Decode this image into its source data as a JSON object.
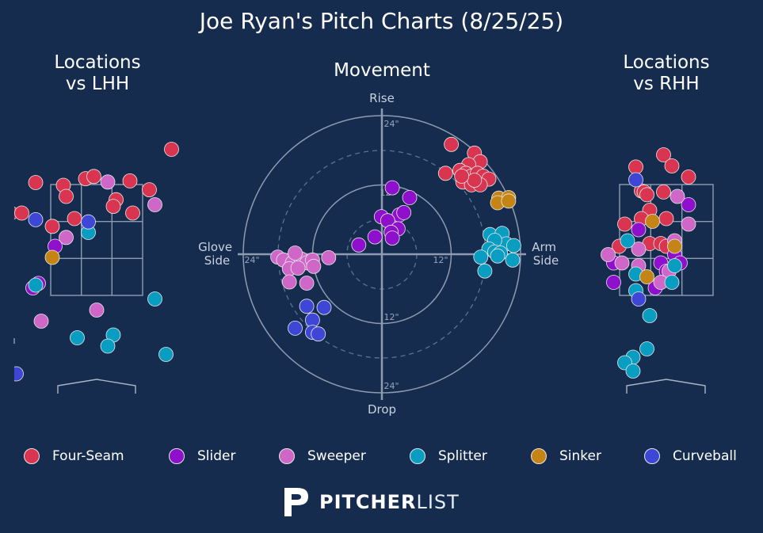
{
  "title": "Joe Ryan's Pitch Charts (8/25/25)",
  "panels": {
    "lhh_title": "Locations\nvs LHH",
    "movement_title": "Movement",
    "rhh_title": "Locations\nvs RHH"
  },
  "movement_labels": {
    "top": "Rise",
    "bottom": "Drop",
    "left": "Glove\nSide",
    "right": "Arm\nSide",
    "ring_inner": "12\"",
    "ring_outer": "24\""
  },
  "colors": {
    "background": "#152c4f",
    "Four-Seam": "#d93550",
    "Slider": "#8e0fcc",
    "Sweeper": "#cf67c8",
    "Splitter": "#0a9dc2",
    "Sinker": "#c58416",
    "Curveball": "#3e46d6"
  },
  "legend": [
    "Four-Seam",
    "Slider",
    "Sweeper",
    "Splitter",
    "Sinker",
    "Curveball"
  ],
  "brand": {
    "logo": "pitcherlist-logo",
    "bold": "PITCHER",
    "light": "LIST"
  },
  "chart_data": [
    {
      "type": "scatter",
      "title": "Locations\nvs LHH",
      "x_unit": "ft from plate center",
      "y_unit": "ft above ground",
      "points": [
        {
          "pitch": "Four-Seam",
          "x": 1.35,
          "y": 4.15
        },
        {
          "pitch": "Four-Seam",
          "x": -1.1,
          "y": 3.55
        },
        {
          "pitch": "Four-Seam",
          "x": -0.6,
          "y": 3.5
        },
        {
          "pitch": "Four-Seam",
          "x": -0.2,
          "y": 3.62
        },
        {
          "pitch": "Four-Seam",
          "x": -0.05,
          "y": 3.66
        },
        {
          "pitch": "Four-Seam",
          "x": 0.6,
          "y": 3.58
        },
        {
          "pitch": "Four-Seam",
          "x": 0.95,
          "y": 3.42
        },
        {
          "pitch": "Four-Seam",
          "x": -0.55,
          "y": 3.3
        },
        {
          "pitch": "Four-Seam",
          "x": 0.35,
          "y": 3.24
        },
        {
          "pitch": "Four-Seam",
          "x": 0.3,
          "y": 3.12
        },
        {
          "pitch": "Four-Seam",
          "x": -1.55,
          "y": 3.0
        },
        {
          "pitch": "Four-Seam",
          "x": -1.35,
          "y": 3.0
        },
        {
          "pitch": "Four-Seam",
          "x": -0.4,
          "y": 2.9
        },
        {
          "pitch": "Four-Seam",
          "x": 0.65,
          "y": 3.0
        },
        {
          "pitch": "Four-Seam",
          "x": -0.8,
          "y": 2.76
        },
        {
          "pitch": "Slider",
          "x": -1.7,
          "y": 1.65
        },
        {
          "pitch": "Slider",
          "x": -1.15,
          "y": 1.65
        },
        {
          "pitch": "Slider",
          "x": -1.05,
          "y": 1.73
        },
        {
          "pitch": "Slider",
          "x": -0.75,
          "y": 2.4
        },
        {
          "pitch": "Sweeper",
          "x": 0.2,
          "y": 3.56
        },
        {
          "pitch": "Sweeper",
          "x": 1.05,
          "y": 3.15
        },
        {
          "pitch": "Sweeper",
          "x": -0.55,
          "y": 2.56
        },
        {
          "pitch": "Sweeper",
          "x": 0.0,
          "y": 1.25
        },
        {
          "pitch": "Sweeper",
          "x": -1.0,
          "y": 1.05
        },
        {
          "pitch": "Splitter",
          "x": -0.15,
          "y": 2.65
        },
        {
          "pitch": "Splitter",
          "x": 1.05,
          "y": 1.45
        },
        {
          "pitch": "Splitter",
          "x": -1.1,
          "y": 1.7
        },
        {
          "pitch": "Splitter",
          "x": 0.3,
          "y": 0.8
        },
        {
          "pitch": "Splitter",
          "x": -0.35,
          "y": 0.75
        },
        {
          "pitch": "Splitter",
          "x": 0.2,
          "y": 0.6
        },
        {
          "pitch": "Splitter",
          "x": 1.25,
          "y": 0.45
        },
        {
          "pitch": "Sinker",
          "x": -0.8,
          "y": 2.2
        },
        {
          "pitch": "Curveball",
          "x": -1.1,
          "y": 2.88
        },
        {
          "pitch": "Curveball",
          "x": -0.15,
          "y": 2.84
        },
        {
          "pitch": "Curveball",
          "x": -1.45,
          "y": 0.1
        }
      ]
    },
    {
      "type": "scatter",
      "title": "Movement",
      "polar": true,
      "x_unit": "in (horizontal break)",
      "y_unit": "in (induced vertical break)",
      "rings": [
        12,
        24
      ],
      "points": [
        {
          "pitch": "Four-Seam",
          "x": 12,
          "y": 19
        },
        {
          "pitch": "Four-Seam",
          "x": 16,
          "y": 17.5
        },
        {
          "pitch": "Four-Seam",
          "x": 17,
          "y": 16
        },
        {
          "pitch": "Four-Seam",
          "x": 15,
          "y": 15.5
        },
        {
          "pitch": "Four-Seam",
          "x": 13.5,
          "y": 14.5
        },
        {
          "pitch": "Four-Seam",
          "x": 14.5,
          "y": 14
        },
        {
          "pitch": "Four-Seam",
          "x": 15.5,
          "y": 13.5
        },
        {
          "pitch": "Four-Seam",
          "x": 16.5,
          "y": 14
        },
        {
          "pitch": "Four-Seam",
          "x": 17.5,
          "y": 13.5
        },
        {
          "pitch": "Four-Seam",
          "x": 18.5,
          "y": 13
        },
        {
          "pitch": "Four-Seam",
          "x": 11,
          "y": 14
        },
        {
          "pitch": "Four-Seam",
          "x": 14,
          "y": 12.5
        },
        {
          "pitch": "Four-Seam",
          "x": 15.5,
          "y": 12
        },
        {
          "pitch": "Four-Seam",
          "x": 17,
          "y": 12
        },
        {
          "pitch": "Four-Seam",
          "x": 16,
          "y": 12.8
        },
        {
          "pitch": "Four-Seam",
          "x": 13.8,
          "y": 13.5
        },
        {
          "pitch": "Slider",
          "x": 1.8,
          "y": 11.5
        },
        {
          "pitch": "Slider",
          "x": 4.8,
          "y": 9.8
        },
        {
          "pitch": "Slider",
          "x": 3,
          "y": 6.8
        },
        {
          "pitch": "Slider",
          "x": 3.8,
          "y": 7.2
        },
        {
          "pitch": "Slider",
          "x": -0.1,
          "y": 6.5
        },
        {
          "pitch": "Slider",
          "x": 1,
          "y": 5.8
        },
        {
          "pitch": "Slider",
          "x": 2.8,
          "y": 4.4
        },
        {
          "pitch": "Slider",
          "x": 1.6,
          "y": 3.8
        },
        {
          "pitch": "Slider",
          "x": -1.2,
          "y": 3
        },
        {
          "pitch": "Slider",
          "x": 1.8,
          "y": 2.8
        },
        {
          "pitch": "Slider",
          "x": -4,
          "y": 1.6
        },
        {
          "pitch": "Sweeper",
          "x": -18,
          "y": -0.5
        },
        {
          "pitch": "Sweeper",
          "x": -17,
          "y": -1
        },
        {
          "pitch": "Sweeper",
          "x": -15.5,
          "y": -1.5
        },
        {
          "pitch": "Sweeper",
          "x": -14,
          "y": -0.8
        },
        {
          "pitch": "Sweeper",
          "x": -13,
          "y": -1.5
        },
        {
          "pitch": "Sweeper",
          "x": -15,
          "y": 0.2
        },
        {
          "pitch": "Sweeper",
          "x": -12,
          "y": -1
        },
        {
          "pitch": "Sweeper",
          "x": -11.8,
          "y": -2.1
        },
        {
          "pitch": "Sweeper",
          "x": -16,
          "y": -2.5
        },
        {
          "pitch": "Sweeper",
          "x": -14.5,
          "y": -2.4
        },
        {
          "pitch": "Sweeper",
          "x": -9.2,
          "y": -0.6
        },
        {
          "pitch": "Sweeper",
          "x": -16,
          "y": -4.8
        },
        {
          "pitch": "Sweeper",
          "x": -13,
          "y": -5
        },
        {
          "pitch": "Splitter",
          "x": 18.7,
          "y": 3.4
        },
        {
          "pitch": "Splitter",
          "x": 20.8,
          "y": 3.6
        },
        {
          "pitch": "Splitter",
          "x": 21.5,
          "y": 1.8
        },
        {
          "pitch": "Splitter",
          "x": 19.5,
          "y": 2.4
        },
        {
          "pitch": "Splitter",
          "x": 18.5,
          "y": 0.9
        },
        {
          "pitch": "Splitter",
          "x": 19.5,
          "y": 0.4
        },
        {
          "pitch": "Splitter",
          "x": 20.5,
          "y": 0.2
        },
        {
          "pitch": "Splitter",
          "x": 20,
          "y": -0.3
        },
        {
          "pitch": "Splitter",
          "x": 17.1,
          "y": -0.5
        },
        {
          "pitch": "Splitter",
          "x": 22.6,
          "y": -1
        },
        {
          "pitch": "Splitter",
          "x": 22.8,
          "y": 1.5
        },
        {
          "pitch": "Splitter",
          "x": 17.8,
          "y": -2.9
        },
        {
          "pitch": "Sinker",
          "x": 20.2,
          "y": 9.7
        },
        {
          "pitch": "Sinker",
          "x": 21.9,
          "y": 9.8
        },
        {
          "pitch": "Sinker",
          "x": 20,
          "y": 8.9
        },
        {
          "pitch": "Sinker",
          "x": 21.9,
          "y": 9.2
        },
        {
          "pitch": "Curveball",
          "x": -13,
          "y": -9
        },
        {
          "pitch": "Curveball",
          "x": -10,
          "y": -9.2
        },
        {
          "pitch": "Curveball",
          "x": -12,
          "y": -11.4
        },
        {
          "pitch": "Curveball",
          "x": -15,
          "y": -12.8
        },
        {
          "pitch": "Curveball",
          "x": -12,
          "y": -13.5
        },
        {
          "pitch": "Curveball",
          "x": -11,
          "y": -13.8
        }
      ]
    },
    {
      "type": "scatter",
      "title": "Locations\nvs RHH",
      "x_unit": "ft from plate center",
      "y_unit": "ft above ground",
      "points": [
        {
          "pitch": "Four-Seam",
          "x": -0.05,
          "y": 4.05
        },
        {
          "pitch": "Four-Seam",
          "x": 0.1,
          "y": 3.85
        },
        {
          "pitch": "Four-Seam",
          "x": -0.55,
          "y": 3.83
        },
        {
          "pitch": "Four-Seam",
          "x": 0.4,
          "y": 3.65
        },
        {
          "pitch": "Four-Seam",
          "x": -0.45,
          "y": 3.4
        },
        {
          "pitch": "Four-Seam",
          "x": -0.4,
          "y": 3.38
        },
        {
          "pitch": "Four-Seam",
          "x": -0.35,
          "y": 3.33
        },
        {
          "pitch": "Four-Seam",
          "x": -0.05,
          "y": 3.38
        },
        {
          "pitch": "Four-Seam",
          "x": -0.3,
          "y": 3.05
        },
        {
          "pitch": "Four-Seam",
          "x": -0.45,
          "y": 2.9
        },
        {
          "pitch": "Four-Seam",
          "x": 0.0,
          "y": 2.9
        },
        {
          "pitch": "Four-Seam",
          "x": -0.75,
          "y": 2.8
        },
        {
          "pitch": "Four-Seam",
          "x": -0.85,
          "y": 2.4
        },
        {
          "pitch": "Four-Seam",
          "x": -0.3,
          "y": 2.45
        },
        {
          "pitch": "Four-Seam",
          "x": -0.1,
          "y": 2.45
        },
        {
          "pitch": "Four-Seam",
          "x": 0.0,
          "y": 2.4
        },
        {
          "pitch": "Slider",
          "x": 0.4,
          "y": 3.15
        },
        {
          "pitch": "Slider",
          "x": -0.5,
          "y": 2.7
        },
        {
          "pitch": "Slider",
          "x": -0.95,
          "y": 2.1
        },
        {
          "pitch": "Slider",
          "x": -0.1,
          "y": 2.1
        },
        {
          "pitch": "Slider",
          "x": 0.15,
          "y": 2.25
        },
        {
          "pitch": "Slider",
          "x": 0.25,
          "y": 2.1
        },
        {
          "pitch": "Slider",
          "x": 0.0,
          "y": 1.95
        },
        {
          "pitch": "Slider",
          "x": -0.95,
          "y": 1.75
        },
        {
          "pitch": "Slider",
          "x": -0.2,
          "y": 1.65
        },
        {
          "pitch": "Sweeper",
          "x": 0.2,
          "y": 3.3
        },
        {
          "pitch": "Sweeper",
          "x": 0.4,
          "y": 2.8
        },
        {
          "pitch": "Sweeper",
          "x": -1.05,
          "y": 2.25
        },
        {
          "pitch": "Sweeper",
          "x": -0.5,
          "y": 2.35
        },
        {
          "pitch": "Sweeper",
          "x": -0.8,
          "y": 2.1
        },
        {
          "pitch": "Sweeper",
          "x": 0.15,
          "y": 2.5
        },
        {
          "pitch": "Sweeper",
          "x": -0.5,
          "y": 2.05
        },
        {
          "pitch": "Sweeper",
          "x": 0.05,
          "y": 1.95
        },
        {
          "pitch": "Sweeper",
          "x": -0.1,
          "y": 1.75
        },
        {
          "pitch": "Splitter",
          "x": -0.7,
          "y": 2.5
        },
        {
          "pitch": "Splitter",
          "x": 0.15,
          "y": 2.05
        },
        {
          "pitch": "Splitter",
          "x": -0.55,
          "y": 1.9
        },
        {
          "pitch": "Splitter",
          "x": 0.1,
          "y": 1.75
        },
        {
          "pitch": "Splitter",
          "x": -0.55,
          "y": 1.6
        },
        {
          "pitch": "Splitter",
          "x": -0.3,
          "y": 1.15
        },
        {
          "pitch": "Splitter",
          "x": -0.35,
          "y": 0.55
        },
        {
          "pitch": "Splitter",
          "x": -0.6,
          "y": 0.4
        },
        {
          "pitch": "Splitter",
          "x": -0.75,
          "y": 0.3
        },
        {
          "pitch": "Splitter",
          "x": -0.6,
          "y": 0.15
        },
        {
          "pitch": "Sinker",
          "x": -0.25,
          "y": 2.85
        },
        {
          "pitch": "Sinker",
          "x": 0.15,
          "y": 2.4
        },
        {
          "pitch": "Sinker",
          "x": -0.35,
          "y": 1.85
        },
        {
          "pitch": "Curveball",
          "x": -0.55,
          "y": 3.6
        },
        {
          "pitch": "Curveball",
          "x": -0.5,
          "y": 1.45
        }
      ]
    }
  ]
}
